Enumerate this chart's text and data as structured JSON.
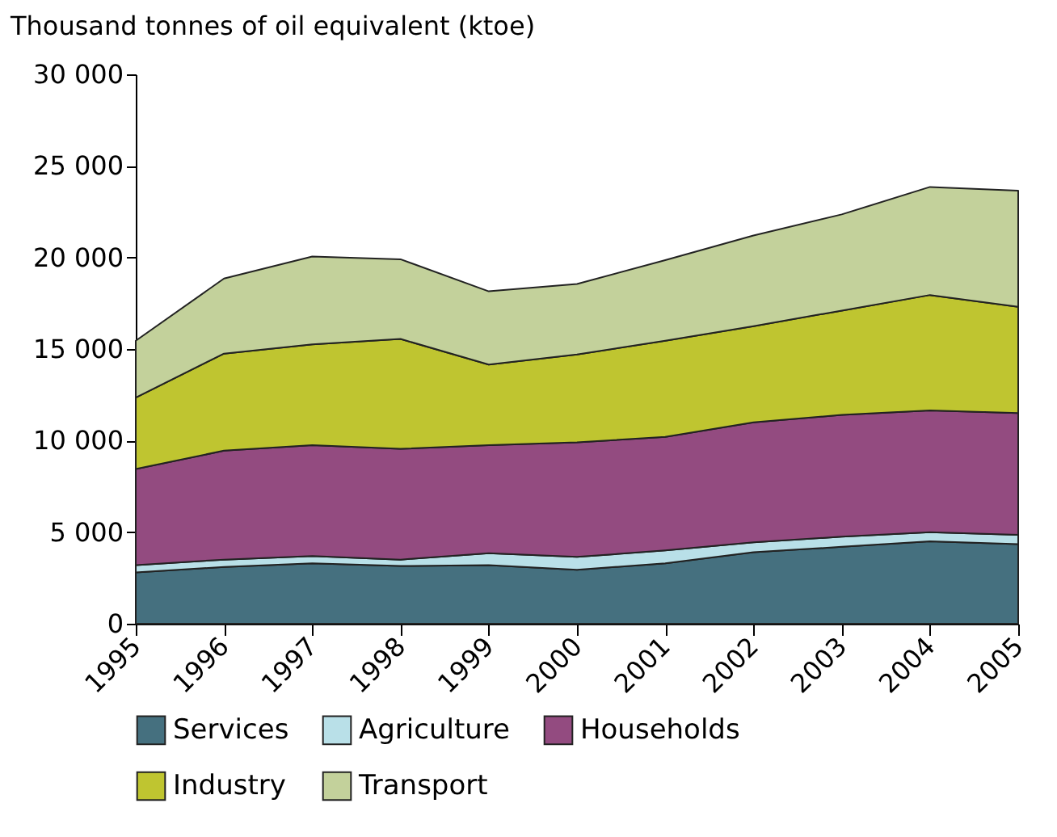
{
  "chart_data": {
    "type": "area",
    "stacked": true,
    "ylabel": "Thousand tonnes of oil equivalent (ktoe)",
    "categories": [
      "1995",
      "1996",
      "1997",
      "1998",
      "1999",
      "2000",
      "2001",
      "2002",
      "2003",
      "2004",
      "2005"
    ],
    "series": [
      {
        "name": "Services",
        "color": "#45707f",
        "values": [
          2800,
          3100,
          3300,
          3150,
          3200,
          2950,
          3300,
          3900,
          4200,
          4500,
          4350
        ]
      },
      {
        "name": "Agriculture",
        "color": "#b9e0e8",
        "values": [
          400,
          400,
          400,
          350,
          650,
          700,
          700,
          550,
          550,
          500,
          500
        ]
      },
      {
        "name": "Households",
        "color": "#934b80",
        "values": [
          5250,
          5950,
          6050,
          6050,
          5900,
          6250,
          6200,
          6550,
          6650,
          6650,
          6650
        ]
      },
      {
        "name": "Industry",
        "color": "#bfc530",
        "values": [
          3900,
          5300,
          5500,
          6000,
          4400,
          4800,
          5250,
          5250,
          5700,
          6300,
          5800
        ]
      },
      {
        "name": "Transport",
        "color": "#c3d19b",
        "values": [
          3100,
          4100,
          4800,
          4350,
          4000,
          3850,
          4400,
          4950,
          5250,
          5900,
          6350
        ]
      }
    ],
    "ylim": [
      0,
      30000
    ],
    "yticks": [
      0,
      {
        "value": 5000,
        "label": "5 000"
      },
      {
        "value": 10000,
        "label": "10 000"
      },
      {
        "value": 15000,
        "label": "15 000"
      },
      {
        "value": 20000,
        "label": "20 000"
      },
      {
        "value": 25000,
        "label": "25 000"
      },
      {
        "value": 30000,
        "label": "30 000"
      }
    ],
    "grid": false,
    "legend": "bottom"
  }
}
